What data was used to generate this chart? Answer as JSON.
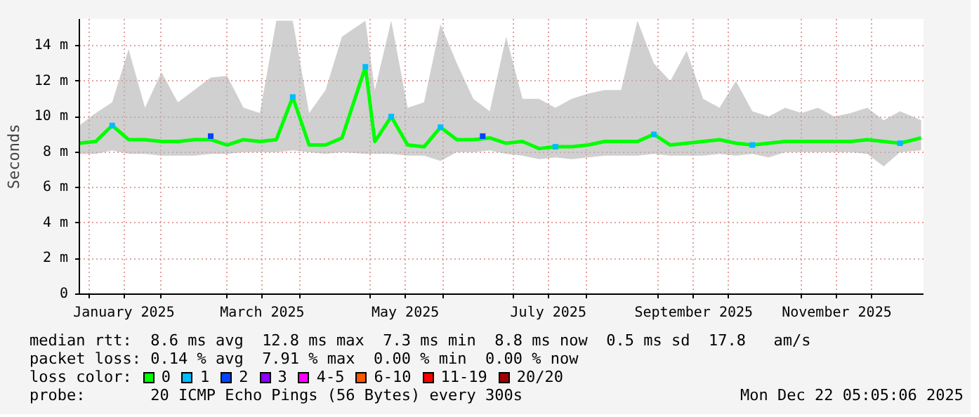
{
  "chart_data": {
    "type": "line",
    "ylabel": "Seconds",
    "legend_title": "loss color:",
    "legend": "bottom",
    "grid": true,
    "marker": "none",
    "line_style": "solid",
    "xlim": [
      "2024-12-28",
      "2025-12-23"
    ],
    "ylim": [
      0,
      15.5
    ],
    "yticks": [
      {
        "value": 0,
        "label": "0"
      },
      {
        "value": 2,
        "label": "2 m"
      },
      {
        "value": 4,
        "label": "4 m"
      },
      {
        "value": 6,
        "label": "6 m"
      },
      {
        "value": 8,
        "label": "8 m"
      },
      {
        "value": 10,
        "label": "10 m"
      },
      {
        "value": 12,
        "label": "12 m"
      },
      {
        "value": 14,
        "label": "14 m"
      }
    ],
    "xticks": [
      {
        "value": "2025-01-01",
        "label": null
      },
      {
        "value": "2025-01-16",
        "label": "January 2025"
      },
      {
        "value": "2025-02-01",
        "label": null
      },
      {
        "value": "2025-03-01",
        "label": null
      },
      {
        "value": "2025-03-16",
        "label": "March 2025"
      },
      {
        "value": "2025-04-01",
        "label": null
      },
      {
        "value": "2025-05-01",
        "label": null
      },
      {
        "value": "2025-05-16",
        "label": "May 2025"
      },
      {
        "value": "2025-06-01",
        "label": null
      },
      {
        "value": "2025-07-01",
        "label": null
      },
      {
        "value": "2025-07-16",
        "label": "July 2025"
      },
      {
        "value": "2025-08-01",
        "label": null
      },
      {
        "value": "2025-09-01",
        "label": null
      },
      {
        "value": "2025-09-16",
        "label": "September 2025"
      },
      {
        "value": "2025-10-01",
        "label": null
      },
      {
        "value": "2025-11-01",
        "label": null
      },
      {
        "value": "2025-11-16",
        "label": "November 2025"
      },
      {
        "value": "2025-12-01",
        "label": null
      }
    ],
    "x": [
      "2024-12-28",
      "2025-01-04",
      "2025-01-11",
      "2025-01-18",
      "2025-01-25",
      "2025-02-01",
      "2025-02-08",
      "2025-02-15",
      "2025-02-22",
      "2025-03-01",
      "2025-03-08",
      "2025-03-15",
      "2025-03-22",
      "2025-03-29",
      "2025-04-05",
      "2025-04-12",
      "2025-04-19",
      "2025-04-29",
      "2025-05-03",
      "2025-05-10",
      "2025-05-17",
      "2025-05-24",
      "2025-05-31",
      "2025-06-07",
      "2025-06-14",
      "2025-06-21",
      "2025-06-28",
      "2025-07-05",
      "2025-07-12",
      "2025-07-19",
      "2025-07-26",
      "2025-08-02",
      "2025-08-09",
      "2025-08-16",
      "2025-08-23",
      "2025-08-30",
      "2025-09-06",
      "2025-09-13",
      "2025-09-20",
      "2025-09-27",
      "2025-10-04",
      "2025-10-11",
      "2025-10-18",
      "2025-10-25",
      "2025-11-01",
      "2025-11-08",
      "2025-11-15",
      "2025-11-22",
      "2025-11-29",
      "2025-12-06",
      "2025-12-13",
      "2025-12-22"
    ],
    "series": [
      {
        "name": "0",
        "color": "#00ff00",
        "values": [
          8.5,
          8.6,
          9.5,
          8.7,
          8.7,
          8.6,
          8.6,
          8.7,
          8.7,
          8.4,
          8.7,
          8.6,
          8.7,
          11.1,
          8.4,
          8.4,
          8.8,
          12.8,
          8.6,
          10.0,
          8.4,
          8.3,
          9.4,
          8.7,
          8.7,
          8.8,
          8.5,
          8.6,
          8.2,
          8.3,
          8.3,
          8.4,
          8.6,
          8.6,
          8.6,
          9.0,
          8.4,
          8.5,
          8.6,
          8.7,
          8.5,
          8.4,
          8.5,
          8.6,
          8.6,
          8.6,
          8.6,
          8.6,
          8.7,
          8.6,
          8.5,
          8.8
        ],
        "lower": [
          7.9,
          7.9,
          8.1,
          7.9,
          7.9,
          7.8,
          7.8,
          7.8,
          7.9,
          7.9,
          8.0,
          8.0,
          8.0,
          8.1,
          8.0,
          7.9,
          8.0,
          7.9,
          7.9,
          7.9,
          7.8,
          7.8,
          7.5,
          8.0,
          8.0,
          8.1,
          7.9,
          7.8,
          7.6,
          7.7,
          7.6,
          7.7,
          7.8,
          7.8,
          7.8,
          7.9,
          7.8,
          7.8,
          7.8,
          7.9,
          7.8,
          7.9,
          7.7,
          8.0,
          8.0,
          8.0,
          8.0,
          8.0,
          7.9,
          7.2,
          8.0,
          8.1
        ],
        "upper": [
          9.5,
          10.2,
          10.8,
          13.8,
          10.5,
          12.5,
          10.8,
          11.5,
          12.2,
          12.3,
          10.5,
          10.2,
          15.4,
          15.4,
          10.2,
          11.5,
          14.5,
          15.4,
          11.5,
          15.4,
          10.5,
          10.8,
          15.2,
          13.0,
          11.0,
          10.3,
          14.5,
          11.0,
          11.0,
          10.5,
          11.0,
          11.3,
          11.5,
          11.5,
          15.4,
          13.0,
          12.0,
          13.7,
          11.0,
          10.5,
          12.0,
          10.3,
          10.0,
          10.5,
          10.2,
          10.5,
          10.0,
          10.2,
          10.5,
          9.8,
          10.3,
          9.8
        ]
      },
      {
        "name": "1",
        "color": "#00bbff",
        "type": "scatter",
        "marker": "square",
        "x": [
          "2025-01-11",
          "2025-03-29",
          "2025-04-29",
          "2025-05-10",
          "2025-05-31",
          "2025-07-19",
          "2025-08-30",
          "2025-10-11",
          "2025-12-13"
        ],
        "values": [
          9.5,
          11.1,
          12.8,
          10.0,
          9.4,
          8.3,
          9.0,
          8.4,
          8.5
        ]
      },
      {
        "name": "2",
        "color": "#0044ff",
        "type": "scatter",
        "marker": "square",
        "x": [
          "2025-02-22",
          "2025-06-18"
        ],
        "values": [
          8.9,
          8.9
        ]
      },
      {
        "name": "3",
        "color": "#8800ff",
        "type": "scatter",
        "marker": "square",
        "values": [
          null,
          null,
          null,
          null,
          null,
          null,
          null,
          null,
          null,
          null,
          null,
          null,
          null,
          null,
          null,
          null,
          null,
          null,
          null,
          null,
          null,
          null,
          null,
          null,
          null,
          null,
          null,
          null,
          null,
          null,
          null,
          null,
          null,
          null,
          null,
          null,
          null,
          null,
          null,
          null,
          null,
          null,
          null,
          null,
          null,
          null,
          null,
          null,
          null,
          null,
          null,
          null
        ]
      },
      {
        "name": "4-5",
        "color": "#ff00ff",
        "type": "scatter",
        "marker": "square",
        "values": [
          null,
          null,
          null,
          null,
          null,
          null,
          null,
          null,
          null,
          null,
          null,
          null,
          null,
          null,
          null,
          null,
          null,
          null,
          null,
          null,
          null,
          null,
          null,
          null,
          null,
          null,
          null,
          null,
          null,
          null,
          null,
          null,
          null,
          null,
          null,
          null,
          null,
          null,
          null,
          null,
          null,
          null,
          null,
          null,
          null,
          null,
          null,
          null,
          null,
          null,
          null,
          null
        ]
      },
      {
        "name": "6-10",
        "color": "#ff5500",
        "type": "scatter",
        "marker": "square",
        "values": [
          null,
          null,
          null,
          null,
          null,
          null,
          null,
          null,
          null,
          null,
          null,
          null,
          null,
          null,
          null,
          null,
          null,
          null,
          null,
          null,
          null,
          null,
          null,
          null,
          null,
          null,
          null,
          null,
          null,
          null,
          null,
          null,
          null,
          null,
          null,
          null,
          null,
          null,
          null,
          null,
          null,
          null,
          null,
          null,
          null,
          null,
          null,
          null,
          null,
          null,
          null,
          null
        ]
      },
      {
        "name": "11-19",
        "color": "#ff0000",
        "type": "scatter",
        "marker": "square",
        "values": [
          null,
          null,
          null,
          null,
          null,
          null,
          null,
          null,
          null,
          null,
          null,
          null,
          null,
          null,
          null,
          null,
          null,
          null,
          null,
          null,
          null,
          null,
          null,
          null,
          null,
          null,
          null,
          null,
          null,
          null,
          null,
          null,
          null,
          null,
          null,
          null,
          null,
          null,
          null,
          null,
          null,
          null,
          null,
          null,
          null,
          null,
          null,
          null,
          null,
          null,
          null,
          null
        ]
      },
      {
        "name": "20/20",
        "color": "#a10000",
        "type": "scatter",
        "marker": "square",
        "values": [
          null,
          null,
          null,
          null,
          null,
          null,
          null,
          null,
          null,
          null,
          null,
          null,
          null,
          null,
          null,
          null,
          null,
          null,
          null,
          null,
          null,
          null,
          null,
          null,
          null,
          null,
          null,
          null,
          null,
          null,
          null,
          null,
          null,
          null,
          null,
          null,
          null,
          null,
          null,
          null,
          null,
          null,
          null,
          null,
          null,
          null,
          null,
          null,
          null,
          null,
          null,
          null
        ]
      }
    ],
    "annotations": [
      "median rtt:  8.6 ms avg  12.8 ms max  7.3 ms min  8.8 ms now  0.5 ms sd  17.8   am/s",
      "packet loss: 0.14 % avg  7.91 % max  0.00 % min  0.00 % now",
      "probe:       20 ICMP Echo Pings (56 Bytes) every 300s",
      "Mon Dec 22 05:05:06 2025"
    ]
  }
}
